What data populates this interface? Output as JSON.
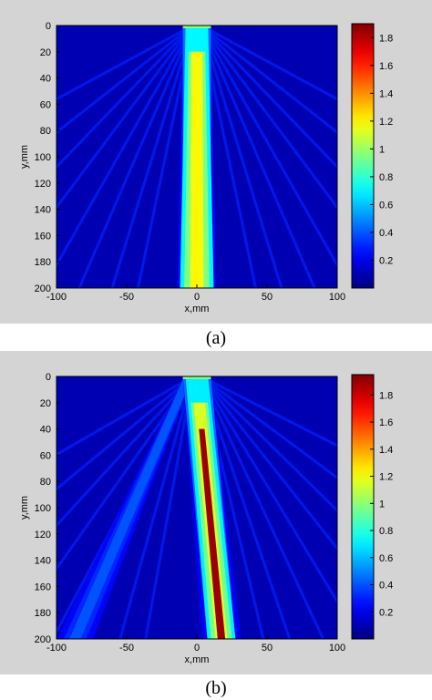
{
  "panels": [
    {
      "caption": "(a)",
      "chart_data": {
        "type": "heatmap",
        "xlabel": "x,mm",
        "ylabel": "y,mm",
        "xlim": [
          -100,
          100
        ],
        "ylim": [
          0,
          200
        ],
        "y_reversed": true,
        "x_ticks": [
          "-100",
          "-50",
          "0",
          "50",
          "100"
        ],
        "y_ticks": [
          "0",
          "20",
          "40",
          "60",
          "80",
          "100",
          "120",
          "140",
          "160",
          "180",
          "200"
        ],
        "colorbar": {
          "min": 0,
          "max": 1.9,
          "ticks": [
            "0.2",
            "0.4",
            "0.6",
            "0.8",
            "1",
            "1.2",
            "1.4",
            "1.6",
            "1.8"
          ],
          "colormap": "jet"
        },
        "beam": {
          "source_x_range": [
            -10,
            10
          ],
          "steer_angle_deg": 0,
          "peak_value": 1.2,
          "focus_width_mm": [
            12,
            7
          ]
        }
      }
    },
    {
      "caption": "(b)",
      "chart_data": {
        "type": "heatmap",
        "xlabel": "x,mm",
        "ylabel": "y,mm",
        "xlim": [
          -100,
          100
        ],
        "ylim": [
          0,
          200
        ],
        "y_reversed": true,
        "x_ticks": [
          "-100",
          "-50",
          "0",
          "50",
          "100"
        ],
        "y_ticks": [
          "0",
          "20",
          "40",
          "60",
          "80",
          "100",
          "120",
          "140",
          "160",
          "180",
          "200"
        ],
        "colorbar": {
          "min": 0,
          "max": 1.95,
          "ticks": [
            "0.2",
            "0.4",
            "0.6",
            "0.8",
            "1",
            "1.2",
            "1.4",
            "1.6",
            "1.8"
          ],
          "colormap": "jet"
        },
        "beam": {
          "source_x_range": [
            -10,
            10
          ],
          "steer_angle_deg": 5,
          "peak_value": 1.9,
          "focus_width_mm": [
            10,
            6
          ],
          "side_lobe_angle_deg": -22
        }
      }
    }
  ]
}
